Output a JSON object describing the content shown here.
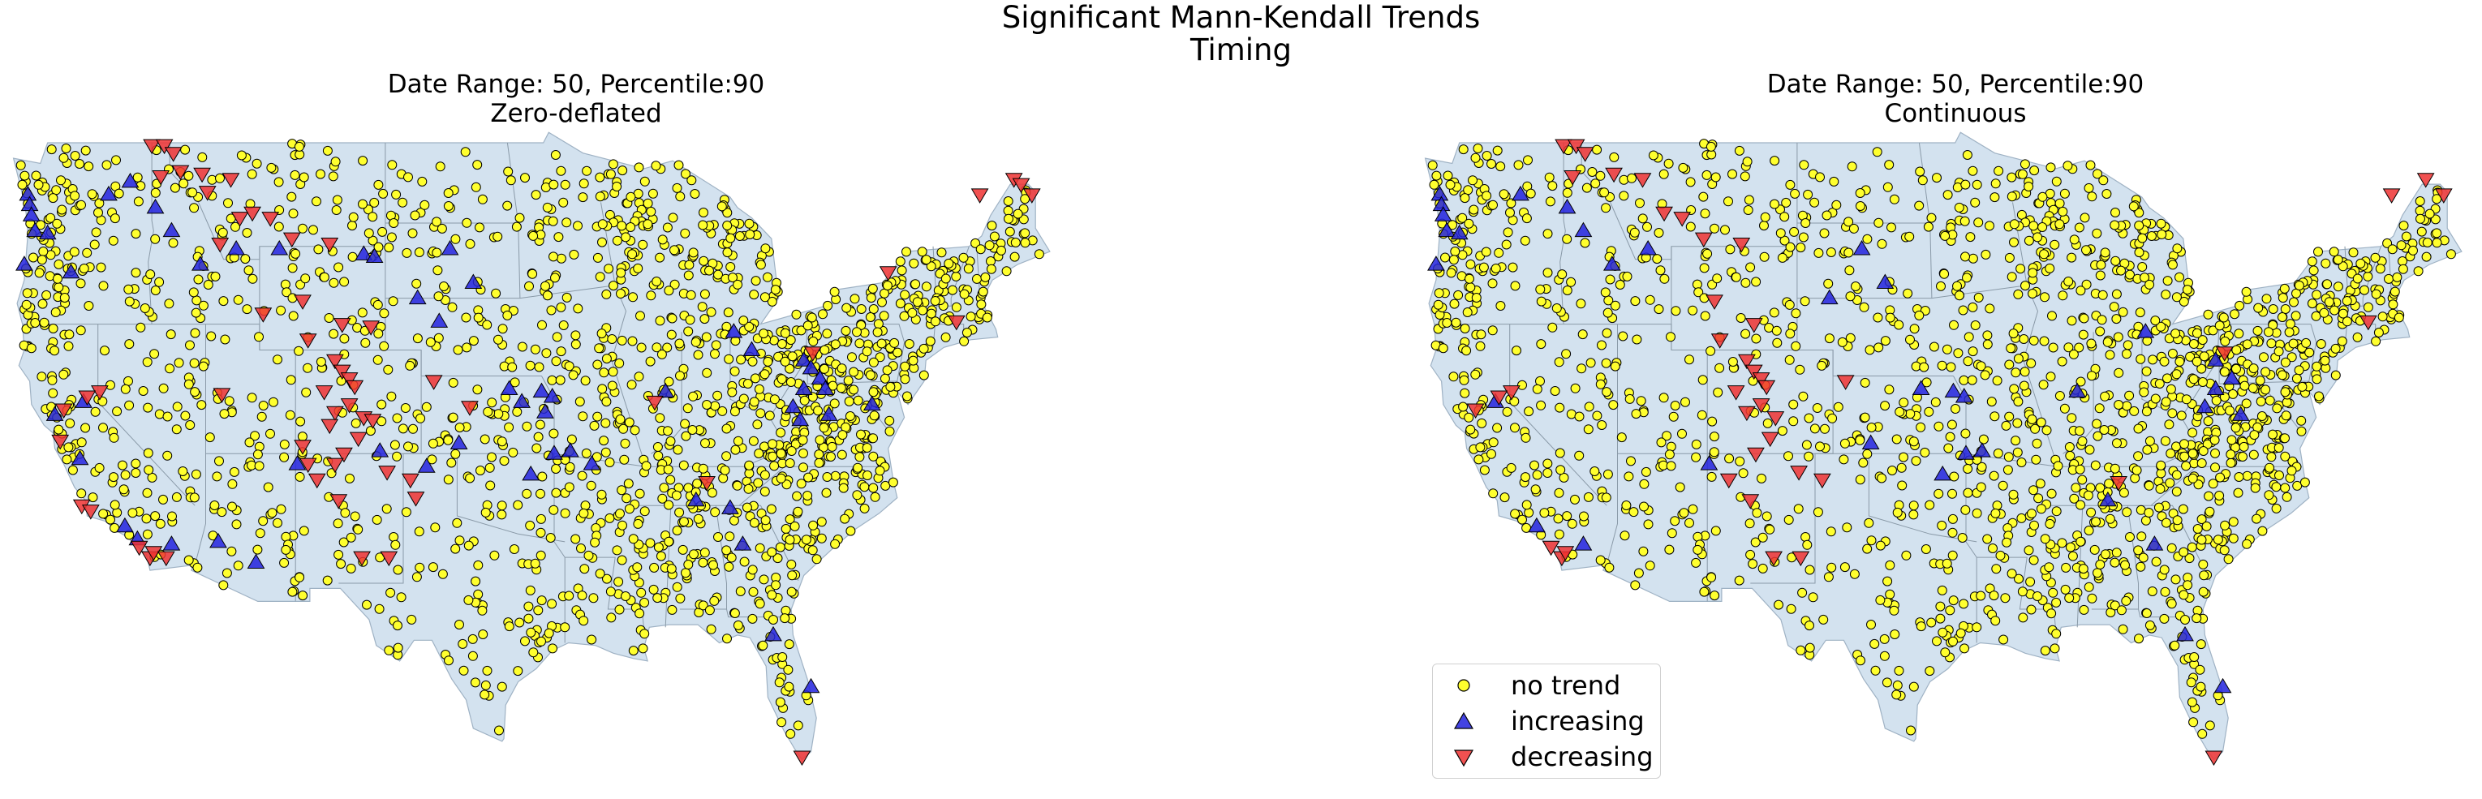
{
  "figure": {
    "title": "Significant Mann-Kendall Trends",
    "subtitle": "Timing"
  },
  "panels": [
    {
      "title": "Date Range: 50, Percentile:90",
      "subtitle": "Zero-deflated"
    },
    {
      "title": "Date Range: 50, Percentile:90",
      "subtitle": "Continuous"
    }
  ],
  "legend": {
    "placement": "lower-left of right panel",
    "items": [
      {
        "label": "no trend",
        "marker": "circle",
        "color": "#ffff2e"
      },
      {
        "label": "increasing",
        "marker": "triangle-up",
        "color": "#2222dd"
      },
      {
        "label": "decreasing",
        "marker": "triangle-down",
        "color": "#ee3333"
      }
    ]
  },
  "colors": {
    "land": "#d3e2ef",
    "state_border": "#8a9aa8",
    "no_trend": "#ffff2e",
    "increasing": "#2222dd",
    "decreasing": "#ee3333",
    "marker_edge": "#000000"
  },
  "chart_data": {
    "type": "scatter",
    "projection": "conterminous United States",
    "marker_density_note": "",
    "series": [
      {
        "panel": "Zero-deflated",
        "increasing": [
          [
            -123.9,
            47.0
          ],
          [
            -123.8,
            46.6
          ],
          [
            -123.7,
            46.2
          ],
          [
            -123.5,
            45.6
          ],
          [
            -122.8,
            45.5
          ],
          [
            -124.1,
            44.3
          ],
          [
            -121.5,
            44.0
          ],
          [
            -119.4,
            47.0
          ],
          [
            -118.2,
            47.5
          ],
          [
            -116.8,
            46.5
          ],
          [
            -115.9,
            45.6
          ],
          [
            -114.3,
            44.3
          ],
          [
            -112.3,
            44.9
          ],
          [
            -109.9,
            44.9
          ],
          [
            -105.2,
            44.7
          ],
          [
            -104.6,
            44.6
          ],
          [
            -100.4,
            44.9
          ],
          [
            -99.1,
            43.6
          ],
          [
            -102.2,
            43.0
          ],
          [
            -101.0,
            42.1
          ],
          [
            -97.1,
            39.5
          ],
          [
            -96.4,
            39.0
          ],
          [
            -95.3,
            39.4
          ],
          [
            -94.7,
            39.2
          ],
          [
            -99.9,
            37.4
          ],
          [
            -95.1,
            38.6
          ],
          [
            -93.7,
            37.1
          ],
          [
            -92.5,
            36.6
          ],
          [
            -84.6,
            41.7
          ],
          [
            -83.6,
            41.0
          ],
          [
            -80.7,
            40.6
          ],
          [
            -80.3,
            40.3
          ],
          [
            -79.8,
            39.9
          ],
          [
            -79.5,
            39.5
          ],
          [
            -80.7,
            39.5
          ],
          [
            -81.3,
            38.8
          ],
          [
            -80.9,
            38.3
          ],
          [
            -79.3,
            38.5
          ],
          [
            -76.9,
            38.9
          ],
          [
            -118.5,
            34.2
          ],
          [
            -117.8,
            33.7
          ],
          [
            -113.3,
            33.6
          ],
          [
            -111.2,
            32.8
          ],
          [
            -115.9,
            33.5
          ],
          [
            -108.9,
            36.6
          ],
          [
            -104.3,
            37.1
          ],
          [
            -101.7,
            36.5
          ],
          [
            -95.9,
            36.2
          ],
          [
            -94.6,
            37.0
          ],
          [
            -88.4,
            39.4
          ],
          [
            -86.7,
            35.2
          ],
          [
            -84.8,
            34.9
          ],
          [
            -84.1,
            33.5
          ],
          [
            -82.4,
            30.0
          ],
          [
            -80.3,
            28.0
          ],
          [
            -120.8,
            39.0
          ],
          [
            -122.4,
            38.5
          ],
          [
            -121.0,
            36.8
          ]
        ],
        "decreasing": [
          [
            -117.0,
            48.9
          ],
          [
            -116.3,
            48.9
          ],
          [
            -115.8,
            48.6
          ],
          [
            -116.5,
            47.7
          ],
          [
            -115.4,
            47.9
          ],
          [
            -114.2,
            47.8
          ],
          [
            -113.9,
            47.1
          ],
          [
            -112.6,
            47.6
          ],
          [
            -112.1,
            46.1
          ],
          [
            -111.4,
            46.3
          ],
          [
            -110.4,
            46.1
          ],
          [
            -113.2,
            45.1
          ],
          [
            -109.2,
            45.3
          ],
          [
            -107.1,
            45.1
          ],
          [
            -104.8,
            41.9
          ],
          [
            -106.4,
            42.0
          ],
          [
            -108.6,
            42.9
          ],
          [
            -110.8,
            42.4
          ],
          [
            -108.3,
            41.4
          ],
          [
            -106.8,
            40.6
          ],
          [
            -106.4,
            40.2
          ],
          [
            -106.0,
            39.9
          ],
          [
            -105.7,
            39.6
          ],
          [
            -107.4,
            39.4
          ],
          [
            -106.8,
            38.6
          ],
          [
            -107.1,
            38.1
          ],
          [
            -106.0,
            38.9
          ],
          [
            -105.2,
            38.4
          ],
          [
            -104.7,
            38.3
          ],
          [
            -105.5,
            37.6
          ],
          [
            -106.3,
            37.0
          ],
          [
            -106.8,
            36.6
          ],
          [
            -103.9,
            36.3
          ],
          [
            -102.6,
            36.0
          ],
          [
            -102.3,
            35.3
          ],
          [
            -103.8,
            33.0
          ],
          [
            -105.3,
            33.0
          ],
          [
            -106.6,
            35.2
          ],
          [
            -107.8,
            36.0
          ],
          [
            -108.3,
            36.6
          ],
          [
            -108.6,
            37.3
          ],
          [
            -113.1,
            39.3
          ],
          [
            -119.9,
            39.4
          ],
          [
            -120.6,
            39.2
          ],
          [
            -121.9,
            38.7
          ],
          [
            -122.1,
            37.5
          ],
          [
            -120.9,
            35.0
          ],
          [
            -120.4,
            34.8
          ],
          [
            -117.7,
            33.4
          ],
          [
            -117.1,
            33.0
          ],
          [
            -116.9,
            33.2
          ],
          [
            -116.2,
            33.0
          ],
          [
            -101.3,
            39.8
          ],
          [
            -99.3,
            38.8
          ],
          [
            -86.1,
            35.9
          ],
          [
            -89.0,
            39.0
          ],
          [
            -80.2,
            40.9
          ],
          [
            -76.0,
            44.0
          ],
          [
            -72.2,
            42.1
          ],
          [
            -70.9,
            47.0
          ],
          [
            -68.0,
            47.0
          ],
          [
            -69.0,
            47.6
          ],
          [
            -68.6,
            47.4
          ],
          [
            -80.8,
            25.3
          ]
        ]
      },
      {
        "panel": "Continuous",
        "increasing": [
          [
            -123.9,
            47.0
          ],
          [
            -123.8,
            46.6
          ],
          [
            -123.7,
            46.2
          ],
          [
            -123.5,
            45.6
          ],
          [
            -122.8,
            45.5
          ],
          [
            -124.1,
            44.3
          ],
          [
            -119.4,
            47.0
          ],
          [
            -116.8,
            46.5
          ],
          [
            -115.9,
            45.6
          ],
          [
            -114.3,
            44.3
          ],
          [
            -112.3,
            44.9
          ],
          [
            -100.4,
            44.9
          ],
          [
            -99.1,
            43.6
          ],
          [
            -102.2,
            43.0
          ],
          [
            -97.1,
            39.5
          ],
          [
            -95.3,
            39.4
          ],
          [
            -94.7,
            39.2
          ],
          [
            -99.9,
            37.4
          ],
          [
            -93.7,
            37.1
          ],
          [
            -84.6,
            41.7
          ],
          [
            -80.7,
            40.6
          ],
          [
            -79.8,
            39.9
          ],
          [
            -80.7,
            39.5
          ],
          [
            -81.3,
            38.8
          ],
          [
            -79.3,
            38.5
          ],
          [
            -118.5,
            34.2
          ],
          [
            -115.9,
            33.5
          ],
          [
            -108.9,
            36.6
          ],
          [
            -95.9,
            36.2
          ],
          [
            -94.6,
            37.0
          ],
          [
            -88.4,
            39.4
          ],
          [
            -86.7,
            35.2
          ],
          [
            -84.1,
            33.5
          ],
          [
            -82.4,
            30.0
          ],
          [
            -80.3,
            28.0
          ],
          [
            -120.8,
            39.0
          ]
        ],
        "decreasing": [
          [
            -117.0,
            48.9
          ],
          [
            -116.3,
            48.9
          ],
          [
            -115.8,
            48.6
          ],
          [
            -116.5,
            47.7
          ],
          [
            -114.2,
            47.8
          ],
          [
            -112.6,
            47.6
          ],
          [
            -111.4,
            46.3
          ],
          [
            -110.4,
            46.1
          ],
          [
            -109.2,
            45.3
          ],
          [
            -107.1,
            45.1
          ],
          [
            -106.4,
            42.0
          ],
          [
            -108.6,
            42.9
          ],
          [
            -108.3,
            41.4
          ],
          [
            -106.8,
            40.6
          ],
          [
            -106.4,
            40.2
          ],
          [
            -106.0,
            39.9
          ],
          [
            -105.7,
            39.6
          ],
          [
            -107.4,
            39.4
          ],
          [
            -106.8,
            38.6
          ],
          [
            -106.0,
            38.9
          ],
          [
            -105.2,
            38.4
          ],
          [
            -105.5,
            37.6
          ],
          [
            -106.3,
            37.0
          ],
          [
            -103.9,
            36.3
          ],
          [
            -102.6,
            36.0
          ],
          [
            -103.8,
            33.0
          ],
          [
            -105.3,
            33.0
          ],
          [
            -106.6,
            35.2
          ],
          [
            -107.8,
            36.0
          ],
          [
            -119.9,
            39.4
          ],
          [
            -120.6,
            39.2
          ],
          [
            -121.9,
            38.7
          ],
          [
            -117.7,
            33.4
          ],
          [
            -117.1,
            33.0
          ],
          [
            -116.9,
            33.2
          ],
          [
            -101.3,
            39.8
          ],
          [
            -86.1,
            35.9
          ],
          [
            -80.2,
            40.9
          ],
          [
            -72.2,
            42.1
          ],
          [
            -70.9,
            47.0
          ],
          [
            -68.0,
            47.0
          ],
          [
            -69.0,
            47.6
          ],
          [
            -80.8,
            25.3
          ]
        ]
      }
    ]
  }
}
